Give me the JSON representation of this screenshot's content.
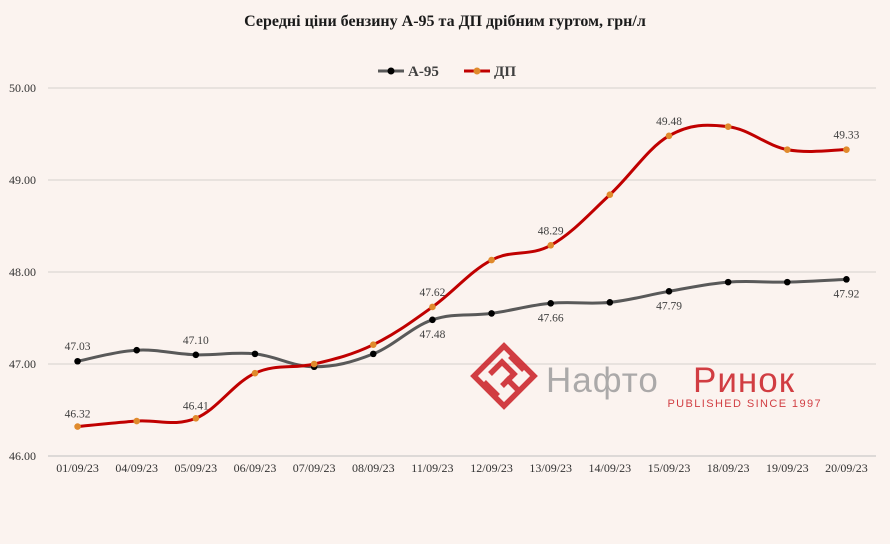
{
  "chart_data": {
    "type": "line",
    "title": "Середні ціни бензину А-95 та ДП дрібним гуртом, грн/л",
    "xlabel": "",
    "ylabel": "",
    "ylim": [
      46.0,
      50.0
    ],
    "yticks": [
      "46.00",
      "47.00",
      "48.00",
      "49.00",
      "50.00"
    ],
    "grid": true,
    "legend": "top-center",
    "categories": [
      "01/09/23",
      "04/09/23",
      "05/09/23",
      "06/09/23",
      "07/09/23",
      "08/09/23",
      "11/09/23",
      "12/09/23",
      "13/09/23",
      "14/09/23",
      "15/09/23",
      "18/09/23",
      "19/09/23",
      "20/09/23"
    ],
    "series": [
      {
        "name": "А-95",
        "color": "#595959",
        "marker_color": "#000000",
        "values": [
          47.03,
          47.15,
          47.1,
          47.11,
          46.97,
          47.11,
          47.48,
          47.55,
          47.66,
          47.67,
          47.79,
          47.89,
          47.89,
          47.92
        ],
        "labeled_points": [
          0,
          2,
          6,
          8,
          10,
          13
        ]
      },
      {
        "name": "ДП",
        "color": "#c00000",
        "marker_color": "#e08a2c",
        "values": [
          46.32,
          46.38,
          46.41,
          46.9,
          47.0,
          47.21,
          47.62,
          48.13,
          48.29,
          48.84,
          49.48,
          49.58,
          49.33,
          49.33
        ],
        "labeled_points": [
          0,
          2,
          6,
          8,
          10,
          13
        ]
      }
    ]
  },
  "watermark": {
    "brand": "НафтоРинок",
    "tagline": "PUBLISHED SINCE 1997",
    "color": "#c8161d"
  }
}
